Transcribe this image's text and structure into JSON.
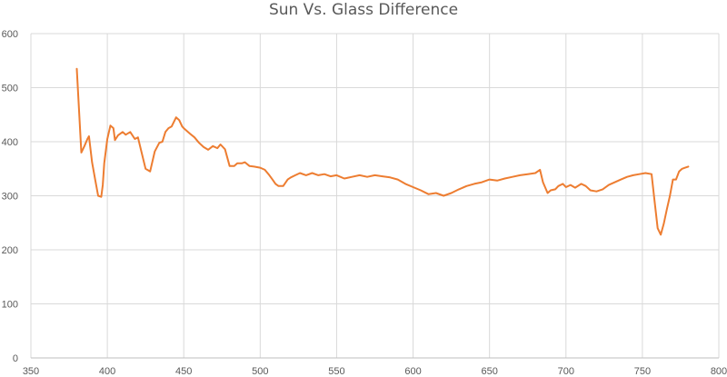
{
  "chart_data": {
    "type": "line",
    "title": "Sun Vs. Glass Difference",
    "xlabel": "",
    "ylabel": "",
    "xlim": [
      350,
      800
    ],
    "ylim": [
      0,
      600
    ],
    "xticks": [
      350,
      400,
      450,
      500,
      550,
      600,
      650,
      700,
      750,
      800
    ],
    "yticks": [
      0,
      100,
      200,
      300,
      400,
      500,
      600
    ],
    "grid": true,
    "legend": "none",
    "series": [
      {
        "color": "#ED7D31",
        "x": [
          380,
          383,
          385,
          387,
          388,
          390,
          392,
          394,
          396,
          397,
          398,
          400,
          402,
          404,
          405,
          407,
          410,
          412,
          415,
          418,
          420,
          422,
          425,
          428,
          431,
          434,
          436,
          438,
          440,
          442,
          445,
          447,
          449,
          450,
          452,
          454,
          457,
          460,
          463,
          466,
          469,
          472,
          474,
          477,
          480,
          483,
          485,
          488,
          490,
          493,
          496,
          500,
          503,
          506,
          508,
          510,
          512,
          515,
          518,
          520,
          523,
          526,
          530,
          534,
          538,
          542,
          546,
          550,
          555,
          560,
          565,
          570,
          575,
          580,
          585,
          590,
          595,
          600,
          605,
          610,
          615,
          620,
          625,
          630,
          635,
          640,
          645,
          650,
          655,
          660,
          665,
          670,
          675,
          680,
          683,
          685,
          688,
          690,
          693,
          695,
          698,
          700,
          703,
          706,
          710,
          713,
          716,
          720,
          724,
          728,
          732,
          736,
          740,
          744,
          748,
          752,
          756,
          758,
          760,
          762,
          764,
          766,
          768,
          770,
          772,
          774,
          776,
          778,
          780
        ],
        "values": [
          535,
          380,
          392,
          405,
          410,
          362,
          330,
          300,
          298,
          320,
          360,
          405,
          430,
          425,
          403,
          412,
          418,
          413,
          418,
          405,
          408,
          385,
          350,
          345,
          382,
          398,
          400,
          418,
          425,
          428,
          445,
          440,
          428,
          425,
          420,
          415,
          408,
          398,
          390,
          385,
          392,
          388,
          395,
          386,
          355,
          355,
          360,
          360,
          362,
          355,
          354,
          352,
          348,
          338,
          330,
          322,
          318,
          318,
          330,
          334,
          338,
          342,
          338,
          342,
          338,
          340,
          336,
          338,
          332,
          335,
          338,
          335,
          338,
          336,
          334,
          330,
          322,
          316,
          310,
          303,
          305,
          300,
          305,
          312,
          318,
          322,
          325,
          330,
          328,
          332,
          335,
          338,
          340,
          342,
          348,
          325,
          305,
          310,
          312,
          318,
          322,
          316,
          320,
          315,
          322,
          318,
          310,
          308,
          312,
          320,
          325,
          330,
          335,
          338,
          340,
          342,
          340,
          290,
          240,
          228,
          248,
          275,
          300,
          330,
          330,
          345,
          350,
          352,
          354
        ]
      }
    ]
  }
}
